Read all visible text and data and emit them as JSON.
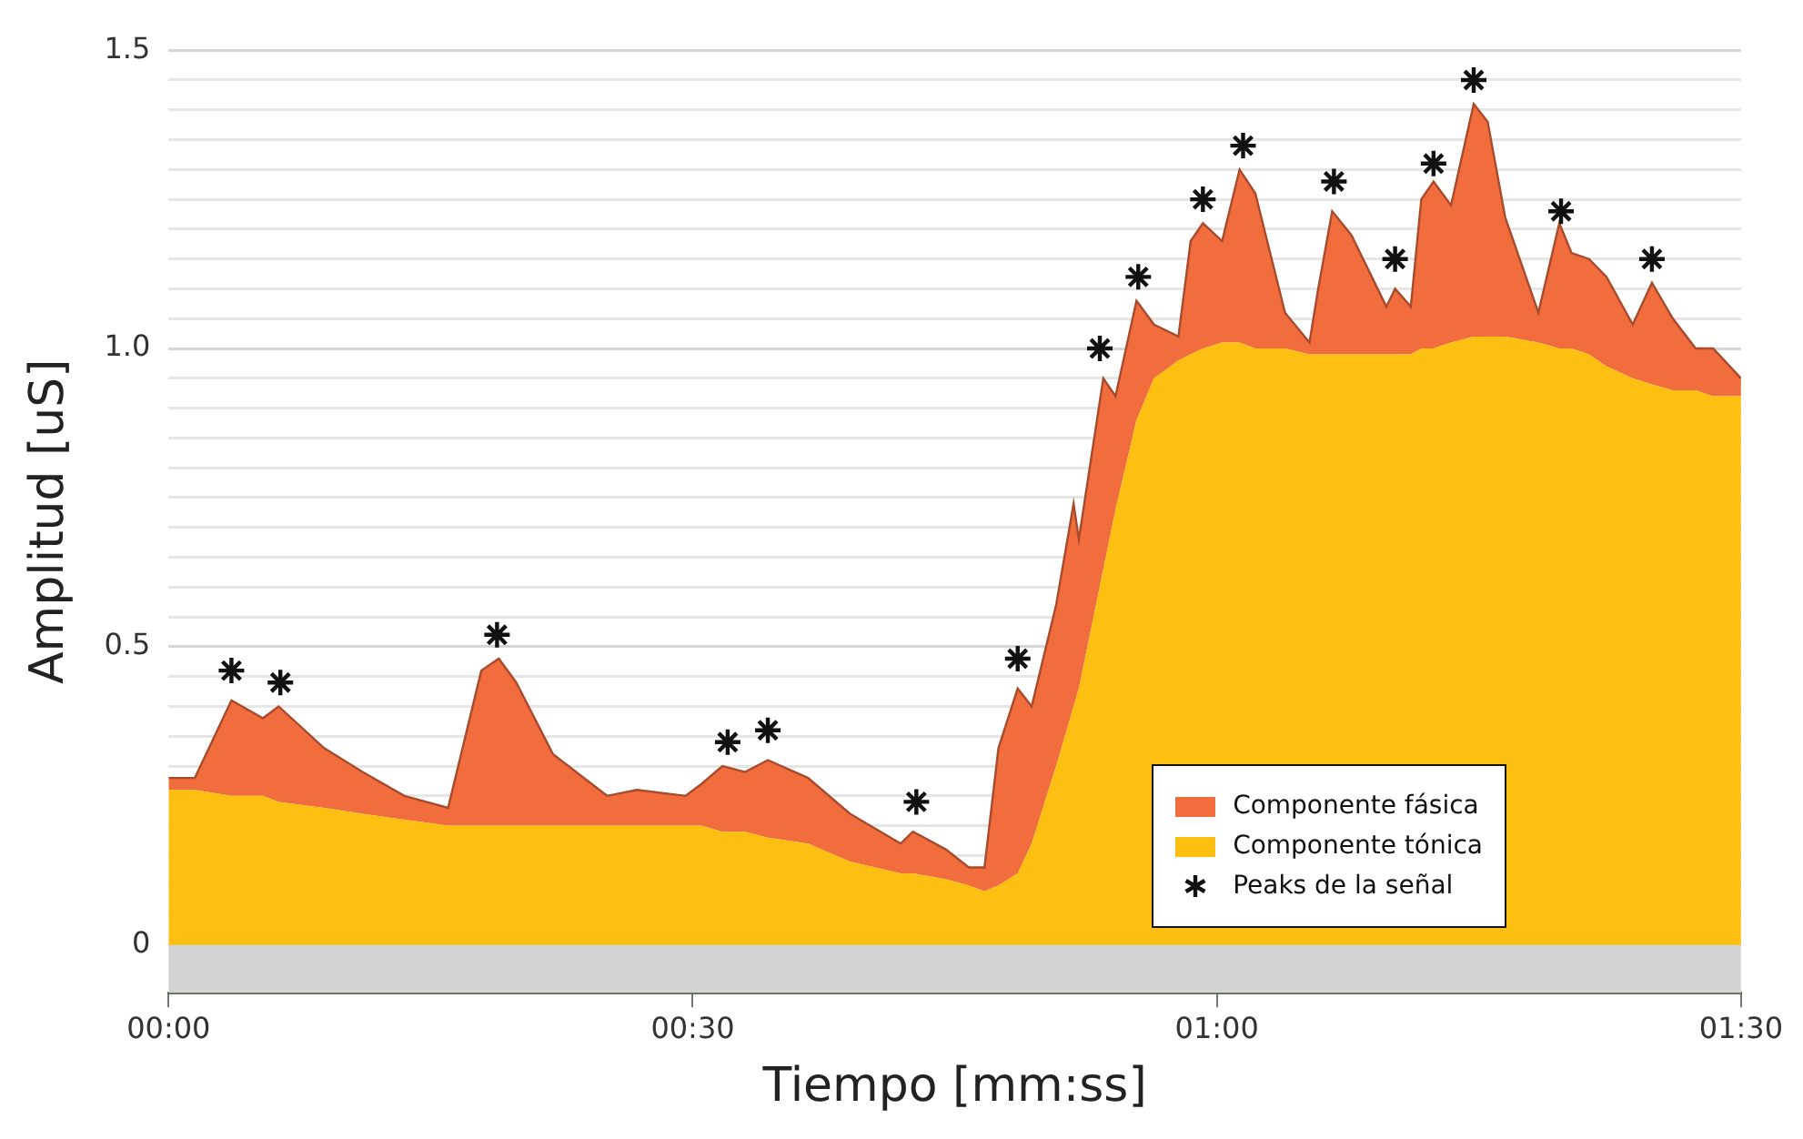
{
  "chart_data": {
    "type": "area",
    "stacked": true,
    "xlabel": "Tiempo [mm:ss]",
    "ylabel": "Amplitud [uS]",
    "x": [
      0,
      1.5,
      3.6,
      5.4,
      6.3,
      8.9,
      11.1,
      13.5,
      16.0,
      17.9,
      18.9,
      19.9,
      22.0,
      25.1,
      26.8,
      29.6,
      30.5,
      31.7,
      33.0,
      34.3,
      36.6,
      39.0,
      41.9,
      42.6,
      44.5,
      45.8,
      46.7,
      47.5,
      48.6,
      49.4,
      50.8,
      51.8,
      52.1,
      53.5,
      54.2,
      55.4,
      56.4,
      57.8,
      58.5,
      59.2,
      60.3,
      61.3,
      62.2,
      63.9,
      65.3,
      65.8,
      66.6,
      67.7,
      69.7,
      70.2,
      71.1,
      71.7,
      72.4,
      73.4,
      74.7,
      75.5,
      76.5,
      78.4,
      79.6,
      80.3,
      81.3,
      82.3,
      83.8,
      84.9,
      86.1,
      87.4,
      88.4,
      90
    ],
    "series": [
      {
        "name": "Componente tónica",
        "color": "#fdbf11",
        "values": [
          0.26,
          0.26,
          0.25,
          0.25,
          0.24,
          0.23,
          0.22,
          0.21,
          0.2,
          0.2,
          0.2,
          0.2,
          0.2,
          0.2,
          0.2,
          0.2,
          0.2,
          0.19,
          0.19,
          0.18,
          0.17,
          0.14,
          0.12,
          0.12,
          0.11,
          0.1,
          0.09,
          0.1,
          0.12,
          0.17,
          0.3,
          0.4,
          0.43,
          0.63,
          0.73,
          0.88,
          0.95,
          0.98,
          0.99,
          1.0,
          1.01,
          1.01,
          1.0,
          1.0,
          0.99,
          0.99,
          0.99,
          0.99,
          0.99,
          0.99,
          0.99,
          1.0,
          1.0,
          1.01,
          1.02,
          1.02,
          1.02,
          1.01,
          1.0,
          1.0,
          0.99,
          0.97,
          0.95,
          0.94,
          0.93,
          0.93,
          0.92,
          0.92
        ]
      },
      {
        "name": "Componente fásica",
        "color": "#f26d3d",
        "values": [
          0.02,
          0.02,
          0.16,
          0.13,
          0.16,
          0.1,
          0.07,
          0.04,
          0.03,
          0.26,
          0.28,
          0.24,
          0.12,
          0.05,
          0.06,
          0.05,
          0.07,
          0.11,
          0.1,
          0.13,
          0.11,
          0.08,
          0.05,
          0.07,
          0.05,
          0.03,
          0.04,
          0.23,
          0.31,
          0.23,
          0.27,
          0.34,
          0.25,
          0.32,
          0.19,
          0.2,
          0.09,
          0.04,
          0.19,
          0.21,
          0.17,
          0.29,
          0.26,
          0.06,
          0.02,
          0.11,
          0.24,
          0.2,
          0.08,
          0.11,
          0.08,
          0.25,
          0.28,
          0.23,
          0.39,
          0.36,
          0.2,
          0.05,
          0.21,
          0.16,
          0.16,
          0.15,
          0.09,
          0.17,
          0.12,
          0.07,
          0.08,
          0.03
        ]
      },
      {
        "name": "Peaks de la señal",
        "type": "scatter",
        "color": "#111111",
        "marker": "cross",
        "x": [
          3.6,
          6.4,
          18.8,
          32.0,
          34.3,
          42.8,
          48.6,
          53.3,
          55.5,
          59.2,
          61.5,
          66.7,
          70.2,
          72.4,
          74.7,
          79.7,
          84.9
        ],
        "values": [
          0.46,
          0.44,
          0.52,
          0.34,
          0.36,
          0.24,
          0.48,
          1.0,
          1.12,
          1.25,
          1.34,
          1.28,
          1.15,
          1.31,
          1.45,
          1.23,
          1.15
        ]
      }
    ],
    "xlim": [
      0,
      90
    ],
    "xticks": [
      {
        "value": 0,
        "label": "00:00"
      },
      {
        "value": 30,
        "label": "00:30"
      },
      {
        "value": 60,
        "label": "01:00"
      },
      {
        "value": 90,
        "label": "01:30"
      }
    ],
    "ylim": [
      -0.08,
      1.5
    ],
    "yticks": [
      {
        "value": 0,
        "label": "0"
      },
      {
        "value": 0.05,
        "label": null
      },
      {
        "value": 0.1,
        "label": null
      },
      {
        "value": 0.15,
        "label": null
      },
      {
        "value": 0.2,
        "label": null
      },
      {
        "value": 0.25,
        "label": null
      },
      {
        "value": 0.3,
        "label": null
      },
      {
        "value": 0.35,
        "label": null
      },
      {
        "value": 0.4,
        "label": null
      },
      {
        "value": 0.45,
        "label": null
      },
      0.5,
      {
        "value": 0.55,
        "label": null
      },
      {
        "value": 0.6,
        "label": null
      },
      {
        "value": 0.65,
        "label": null
      },
      {
        "value": 0.7,
        "label": null
      },
      {
        "value": 0.75,
        "label": null
      },
      {
        "value": 0.8,
        "label": null
      },
      {
        "value": 0.85,
        "label": null
      },
      {
        "value": 0.9,
        "label": null
      },
      {
        "value": 0.95,
        "label": null
      },
      {
        "value": 1,
        "label": "1.0"
      },
      {
        "value": 1.05,
        "label": null
      },
      {
        "value": 1.1,
        "label": null
      },
      {
        "value": 1.15,
        "label": null
      },
      {
        "value": 1.2,
        "label": null
      },
      {
        "value": 1.25,
        "label": null
      },
      {
        "value": 1.3,
        "label": null
      },
      {
        "value": 1.35,
        "label": null
      },
      {
        "value": 1.4,
        "label": null
      },
      {
        "value": 1.45,
        "label": null
      },
      1.5
    ],
    "bands": [
      {
        "axis": "y",
        "from": -0.08,
        "to": 0,
        "color": "#d4d4d4"
      }
    ],
    "grid": "y",
    "legend": "bottom right"
  }
}
